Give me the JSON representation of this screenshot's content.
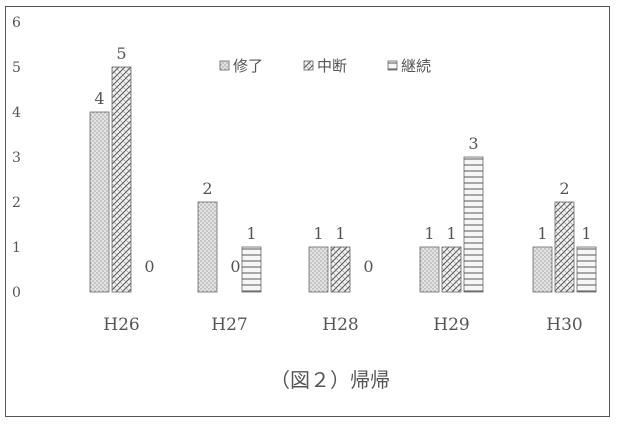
{
  "chart_data": {
    "type": "bar",
    "categories": [
      "H26",
      "H27",
      "H28",
      "H29",
      "H30"
    ],
    "series": [
      {
        "name": "修了",
        "values": [
          4,
          2,
          1,
          1,
          1
        ],
        "pattern": "dots"
      },
      {
        "name": "中断",
        "values": [
          5,
          0,
          1,
          1,
          2
        ],
        "pattern": "diagonal"
      },
      {
        "name": "継続",
        "values": [
          0,
          1,
          0,
          3,
          1
        ],
        "pattern": "horizontal"
      }
    ],
    "yticks": [
      0,
      1,
      2,
      3,
      4,
      5,
      6
    ],
    "ylim": [
      0,
      6
    ],
    "caption": "（図２）帰帰",
    "legend_position": "top-center",
    "grid": false,
    "colors": {
      "bar_fill": "#d9d9d9",
      "bar_stroke": "#666666",
      "text": "#555555"
    }
  }
}
